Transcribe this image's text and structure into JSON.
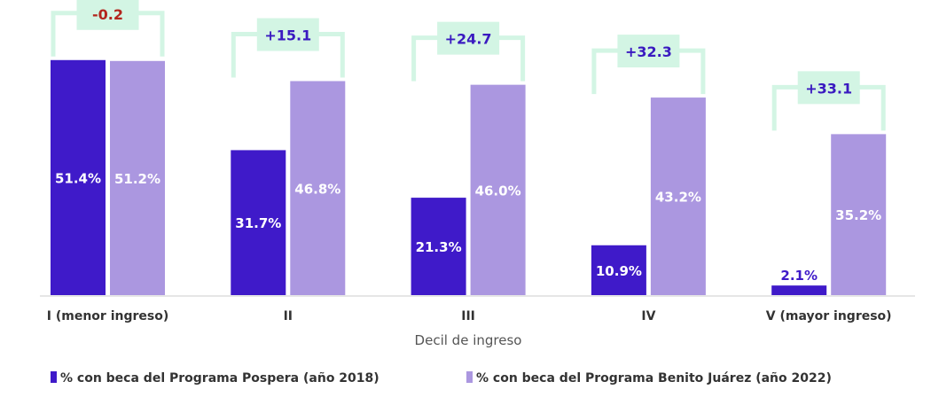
{
  "chart_data": {
    "type": "bar",
    "title": "",
    "xlabel": "Decil de ingreso",
    "ylabel": "",
    "ylim": [
      0,
      60
    ],
    "grid": false,
    "legend_placement": "bottom",
    "categories": [
      "I (menor ingreso)",
      "II",
      "III",
      "IV",
      "V (mayor ingreso)"
    ],
    "series": [
      {
        "name": "% con beca del Programa Pospera (año 2018)",
        "values": [
          51.4,
          31.7,
          21.3,
          10.9,
          2.1
        ],
        "labels": [
          "51.4%",
          "31.7%",
          "21.3%",
          "10.9%",
          "2.1%"
        ],
        "color": "#3f1ac9"
      },
      {
        "name": "% con beca del Programa Benito Juárez (año 2022)",
        "values": [
          51.2,
          46.8,
          46.0,
          43.2,
          35.2
        ],
        "labels": [
          "51.2%",
          "46.8%",
          "46.0%",
          "43.2%",
          "35.2%"
        ],
        "color": "#ab97e0"
      }
    ],
    "differences": [
      "-0.2",
      "+15.1",
      "+24.7",
      "+32.3",
      "+33.1"
    ],
    "colors": {
      "bracket": "#d3f5e4",
      "positive_text": "#3a1ac0",
      "negative_text": "#b3261e"
    }
  }
}
